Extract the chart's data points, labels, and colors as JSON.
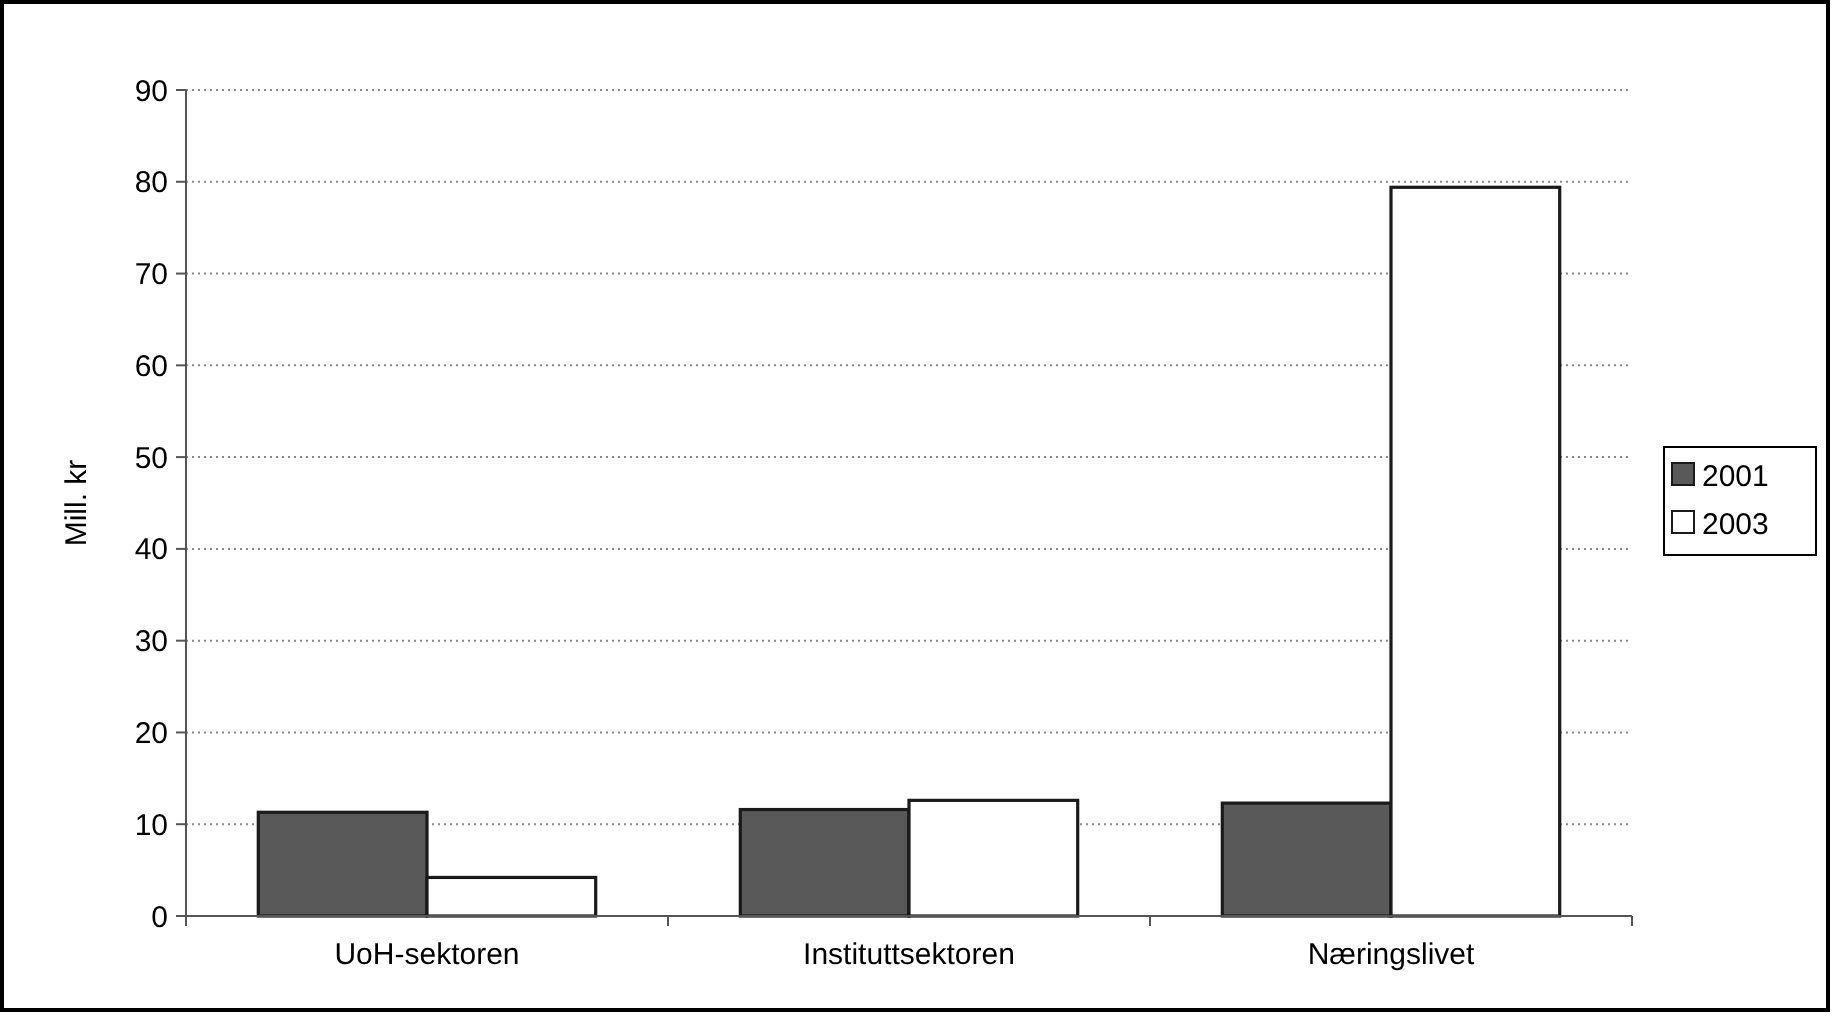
{
  "chart_data": {
    "type": "bar",
    "ylabel": "Mill. kr",
    "categories": [
      "UoH-sektoren",
      "Instituttsektoren",
      "Næringslivet"
    ],
    "series": [
      {
        "name": "2001",
        "color": "#595959",
        "values": [
          11.3,
          11.6,
          12.3
        ]
      },
      {
        "name": "2003",
        "color": "#ffffff",
        "values": [
          4.2,
          12.6,
          79.4
        ]
      }
    ],
    "ylim": [
      0,
      90
    ],
    "yticks": [
      0,
      10,
      20,
      30,
      40,
      50,
      60,
      70,
      80,
      90
    ],
    "grid": "y",
    "legend": "right"
  }
}
